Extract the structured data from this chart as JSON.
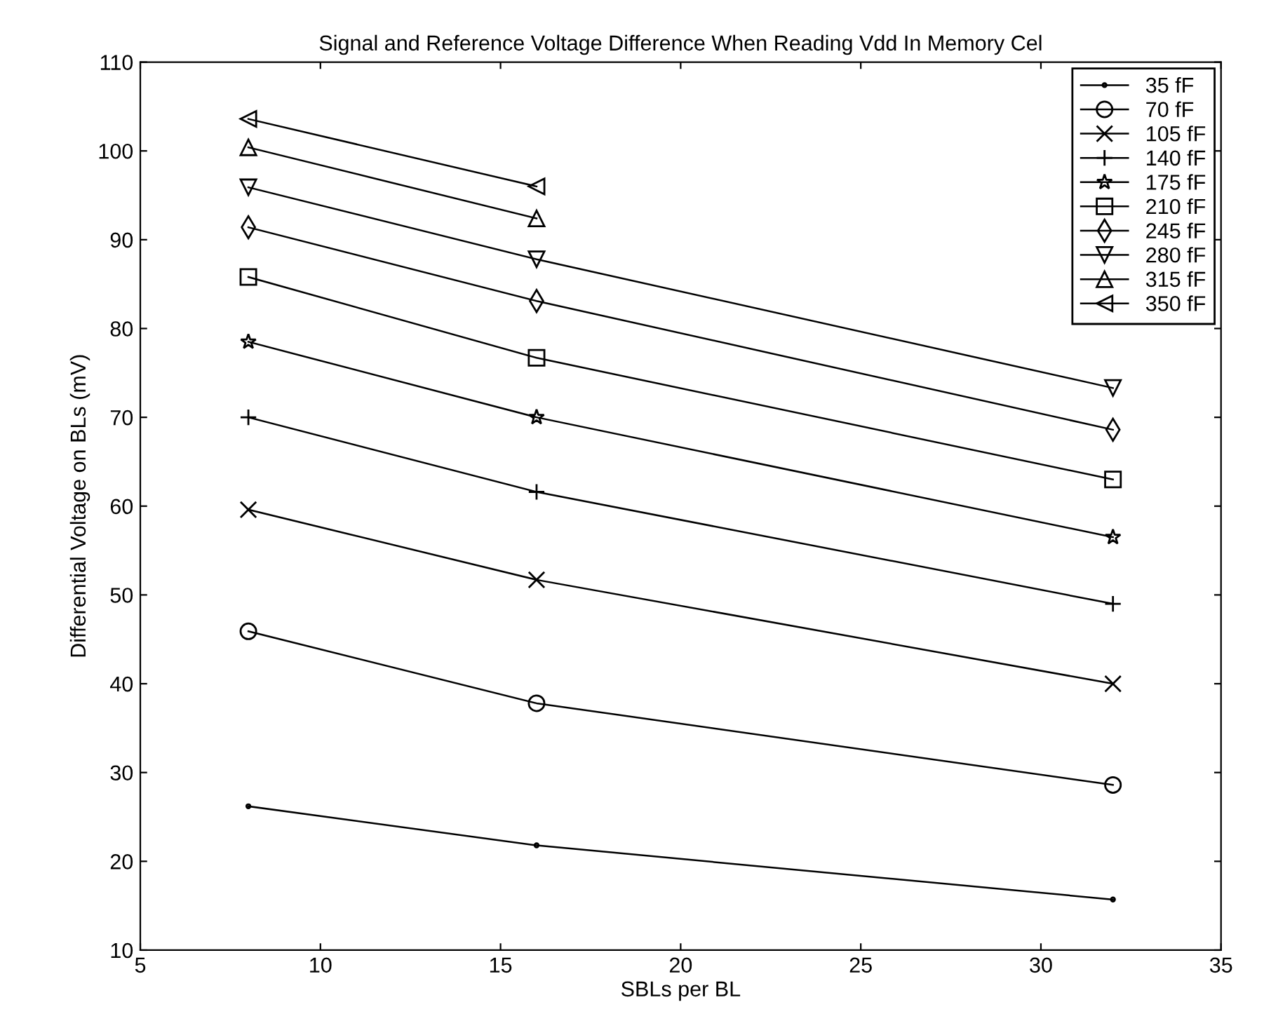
{
  "chart_data": {
    "type": "line",
    "title": "Signal and Reference Voltage Difference When Reading Vdd In Memory Cel",
    "xlabel": "SBLs per BL",
    "ylabel": "Differential Voltage on BLs (mV)",
    "x": [
      8,
      16,
      32
    ],
    "xlim": [
      5,
      35
    ],
    "xticks": [
      5,
      10,
      15,
      20,
      25,
      30,
      35
    ],
    "ylim": [
      10,
      110
    ],
    "yticks": [
      10,
      20,
      30,
      40,
      50,
      60,
      70,
      80,
      90,
      100,
      110
    ],
    "grid": false,
    "legend": "top right",
    "line_style": "solid",
    "series": [
      {
        "name": "35 fF",
        "color": "#000000",
        "marker": "point",
        "values": [
          26.2,
          21.8,
          15.7
        ]
      },
      {
        "name": "70 fF",
        "color": "#000000",
        "marker": "circle",
        "values": [
          45.9,
          37.8,
          28.6
        ]
      },
      {
        "name": "105 fF",
        "color": "#000000",
        "marker": "cross",
        "values": [
          59.6,
          51.7,
          40.0
        ]
      },
      {
        "name": "140 fF",
        "color": "#000000",
        "marker": "plus",
        "values": [
          70.0,
          61.6,
          49.0
        ]
      },
      {
        "name": "175 fF",
        "color": "#000000",
        "marker": "star",
        "values": [
          78.5,
          70.0,
          56.5
        ]
      },
      {
        "name": "210 fF",
        "color": "#000000",
        "marker": "square",
        "values": [
          85.8,
          76.7,
          63.0
        ]
      },
      {
        "name": "245 fF",
        "color": "#000000",
        "marker": "diamond",
        "values": [
          91.4,
          83.1,
          68.6
        ]
      },
      {
        "name": "280 fF",
        "color": "#000000",
        "marker": "triangle_down",
        "values": [
          95.9,
          87.8,
          73.3
        ]
      },
      {
        "name": "315 fF",
        "color": "#000000",
        "marker": "triangle",
        "values": [
          100.4,
          92.4,
          null
        ]
      },
      {
        "name": "350 fF",
        "color": "#000000",
        "marker": "triangle_left",
        "values": [
          103.6,
          96.0,
          null
        ]
      }
    ]
  }
}
